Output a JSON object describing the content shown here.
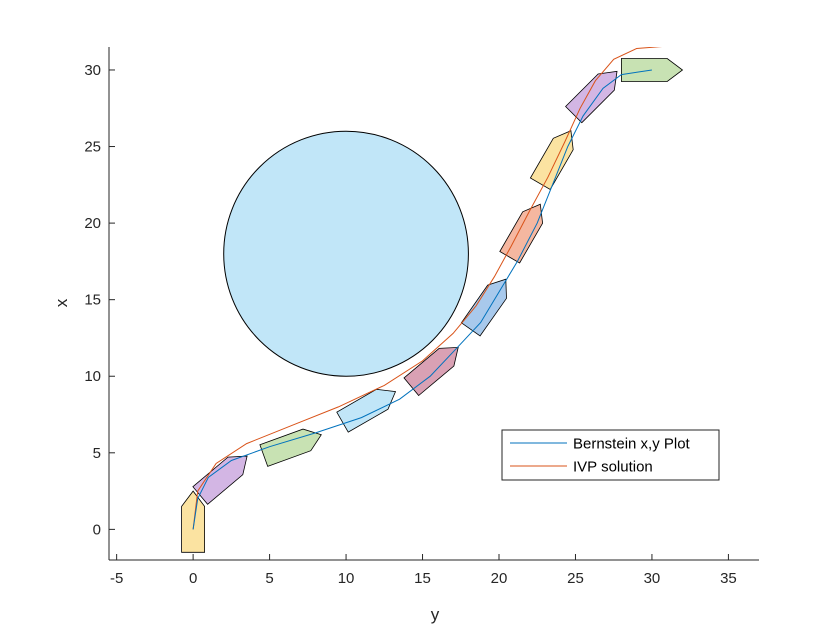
{
  "chart_data": {
    "type": "line",
    "xlabel": "y",
    "ylabel": "x",
    "xlim": [
      -5.5,
      37
    ],
    "ylim": [
      -2,
      31.5
    ],
    "xticks": [
      -5,
      0,
      5,
      10,
      15,
      20,
      25,
      30,
      35
    ],
    "yticks": [
      0,
      5,
      10,
      15,
      20,
      25,
      30
    ],
    "xtick_labels": [
      "-5",
      "0",
      "5",
      "10",
      "15",
      "20",
      "25",
      "30",
      "35"
    ],
    "ytick_labels": [
      "0",
      "5",
      "10",
      "15",
      "20",
      "25",
      "30"
    ],
    "grid": false,
    "legend_location": "lower-right",
    "obstacle": {
      "center": [
        10,
        18
      ],
      "radius": 8,
      "color": "#c1e6f8"
    },
    "series": [
      {
        "name": "Bernstein x,y Plot",
        "color": "#0072bd",
        "x": [
          0,
          0.3,
          1,
          2.5,
          5,
          8,
          11,
          13.5,
          15.5,
          17.2,
          18.8,
          20,
          21.2,
          22.5,
          23.5,
          24.5,
          25.5,
          26.8,
          28,
          30
        ],
        "y": [
          0,
          2,
          3.4,
          4.5,
          5.4,
          6.3,
          7.3,
          8.5,
          10,
          11.8,
          13.5,
          15.5,
          17.5,
          20,
          22.5,
          25,
          27,
          28.8,
          29.7,
          30
        ]
      },
      {
        "name": "IVP solution",
        "color": "#d95319",
        "x": [
          0,
          0.3,
          1.5,
          3.5,
          6.5,
          9.5,
          12.5,
          15,
          17,
          18.5,
          19.7,
          20.8,
          22,
          23.2,
          24.3,
          25.3,
          26.3,
          27.5,
          29,
          31.5
        ],
        "y": [
          0,
          2.5,
          4.3,
          5.6,
          6.8,
          8,
          9.4,
          11,
          12.8,
          14.6,
          16.5,
          18.5,
          20.8,
          23,
          25.3,
          27.5,
          29.3,
          30.7,
          31.4,
          31.6
        ]
      }
    ],
    "vehicles": [
      {
        "y": 0,
        "x": 0.5,
        "heading_deg": 90,
        "color": "#fbe3a1"
      },
      {
        "y": 2,
        "x": 3.5,
        "heading_deg": 40,
        "color": "#d3b6e4"
      },
      {
        "y": 6.5,
        "x": 5.5,
        "heading_deg": 20,
        "color": "#c8e2b3"
      },
      {
        "y": 11.5,
        "x": 8,
        "heading_deg": 30,
        "color": "#c1e6f8"
      },
      {
        "y": 15.8,
        "x": 10.6,
        "heading_deg": 40,
        "color": "#d9a1b4"
      },
      {
        "y": 19.3,
        "x": 14.7,
        "heading_deg": 55,
        "color": "#a8c9ec"
      },
      {
        "y": 21.7,
        "x": 19.5,
        "heading_deg": 60,
        "color": "#f5b7a0"
      },
      {
        "y": 23.7,
        "x": 24.3,
        "heading_deg": 60,
        "color": "#fbe3a1"
      },
      {
        "y": 26.3,
        "x": 28.5,
        "heading_deg": 45,
        "color": "#d3b6e4"
      },
      {
        "y": 30,
        "x": 30,
        "heading_deg": 0,
        "color": "#c8e2b3"
      }
    ]
  }
}
